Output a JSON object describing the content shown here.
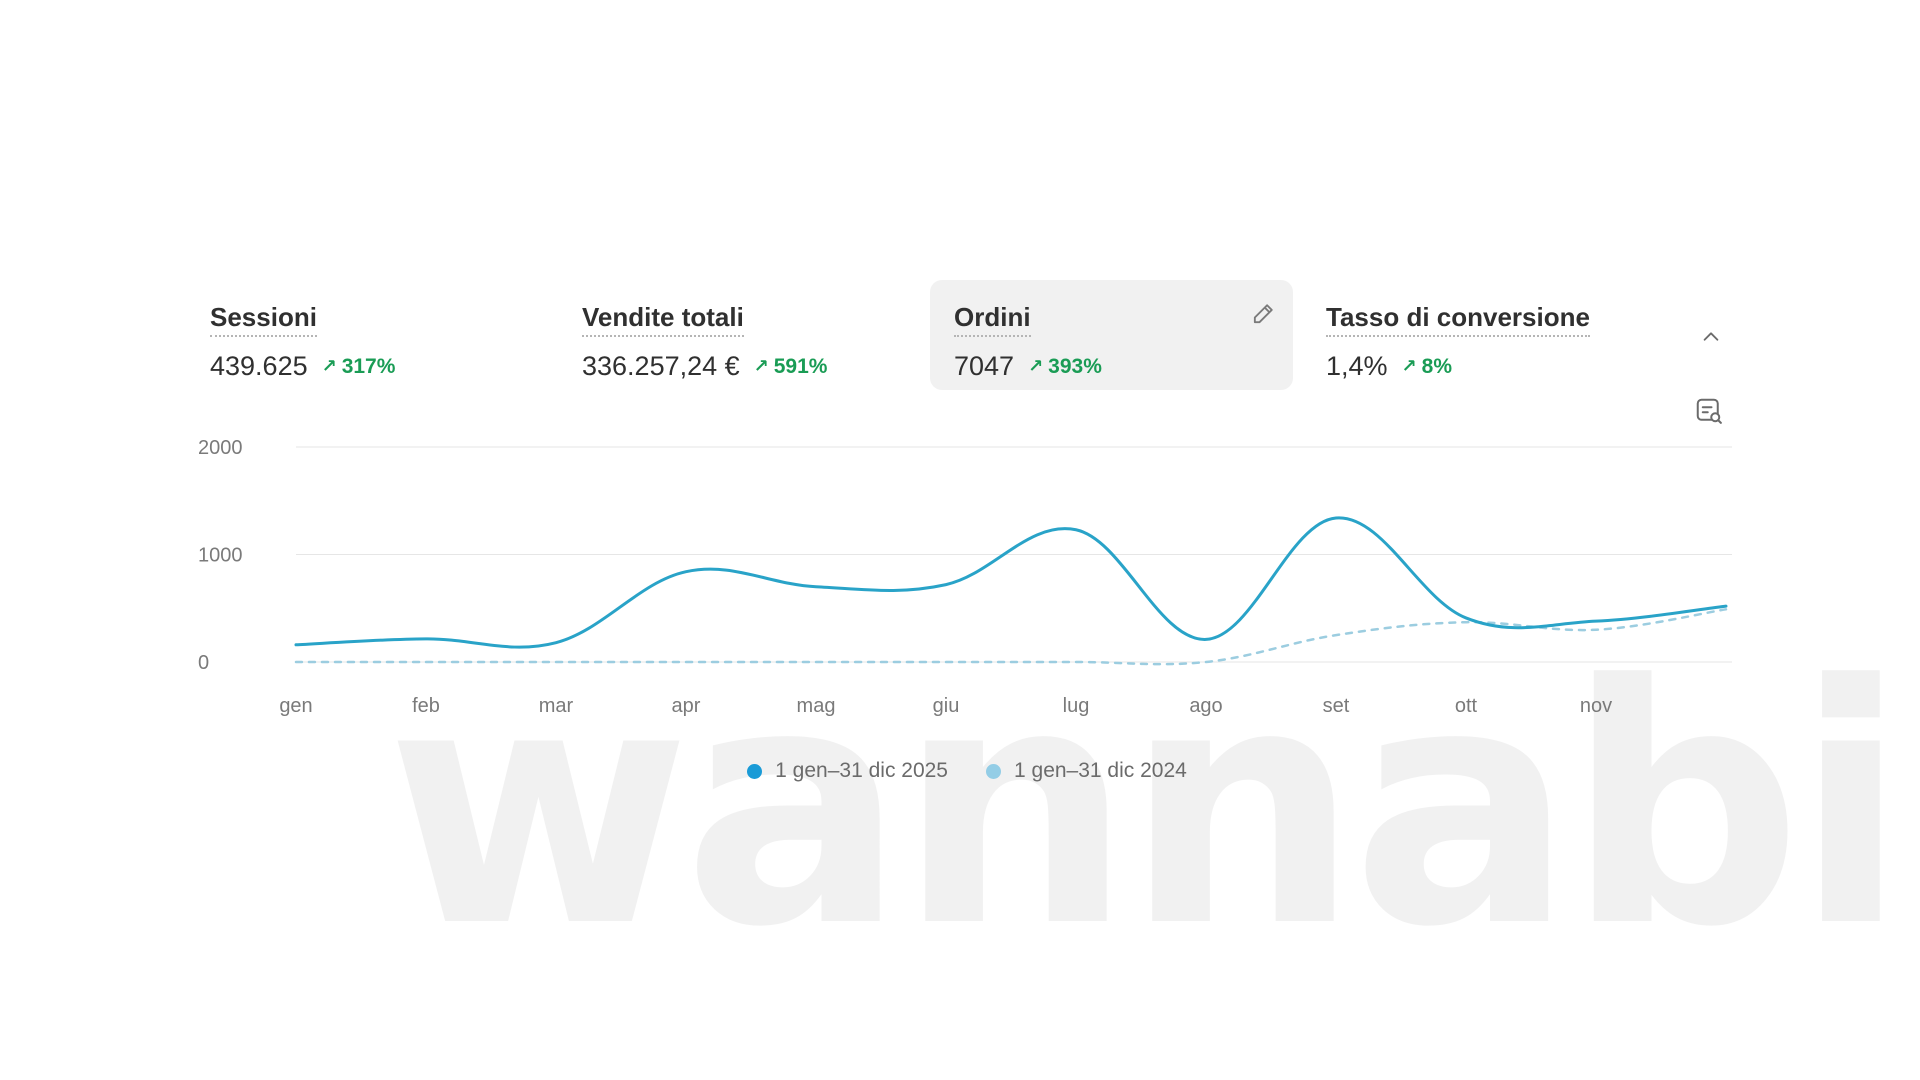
{
  "kpis": [
    {
      "label": "Sessioni",
      "value": "439.625",
      "delta": "317%"
    },
    {
      "label": "Vendite totali",
      "value": "336.257,24 €",
      "delta": "591%"
    },
    {
      "label": "Ordini",
      "value": "7047",
      "delta": "393%"
    },
    {
      "label": "Tasso di conversione",
      "value": "1,4%",
      "delta": "8%"
    }
  ],
  "selected_kpi": "Ordini",
  "watermark": "wannabi",
  "icons": {
    "edit": "pencil-icon",
    "collapse": "chevron-up-icon",
    "explore": "chart-explore-icon",
    "delta": "arrow-up-right-icon"
  },
  "colors": {
    "current": "#29a3c8",
    "previous": "#9ccde0",
    "positive": "#1a9c55",
    "grid": "#e6e6e6"
  },
  "legend": [
    {
      "label": "1 gen–31 dic 2025",
      "color": "#1a9bd7"
    },
    {
      "label": "1 gen–31 dic 2024",
      "color": "#93cde6"
    }
  ],
  "chart_data": {
    "type": "line",
    "categories": [
      "gen",
      "feb",
      "mar",
      "apr",
      "mag",
      "giu",
      "lug",
      "ago",
      "set",
      "ott",
      "nov",
      ""
    ],
    "yticks": [
      "0",
      "1000",
      "2000"
    ],
    "ylim": [
      0,
      2000
    ],
    "grid": true,
    "legend_position": "bottom",
    "series": [
      {
        "name": "1 gen–31 dic 2025",
        "style": "solid",
        "values": [
          160,
          215,
          180,
          840,
          700,
          720,
          1230,
          210,
          1340,
          410,
          380,
          520
        ]
      },
      {
        "name": "1 gen–31 dic 2024",
        "style": "dashed",
        "values": [
          0,
          0,
          0,
          0,
          0,
          0,
          0,
          0,
          250,
          370,
          300,
          490
        ]
      }
    ]
  }
}
